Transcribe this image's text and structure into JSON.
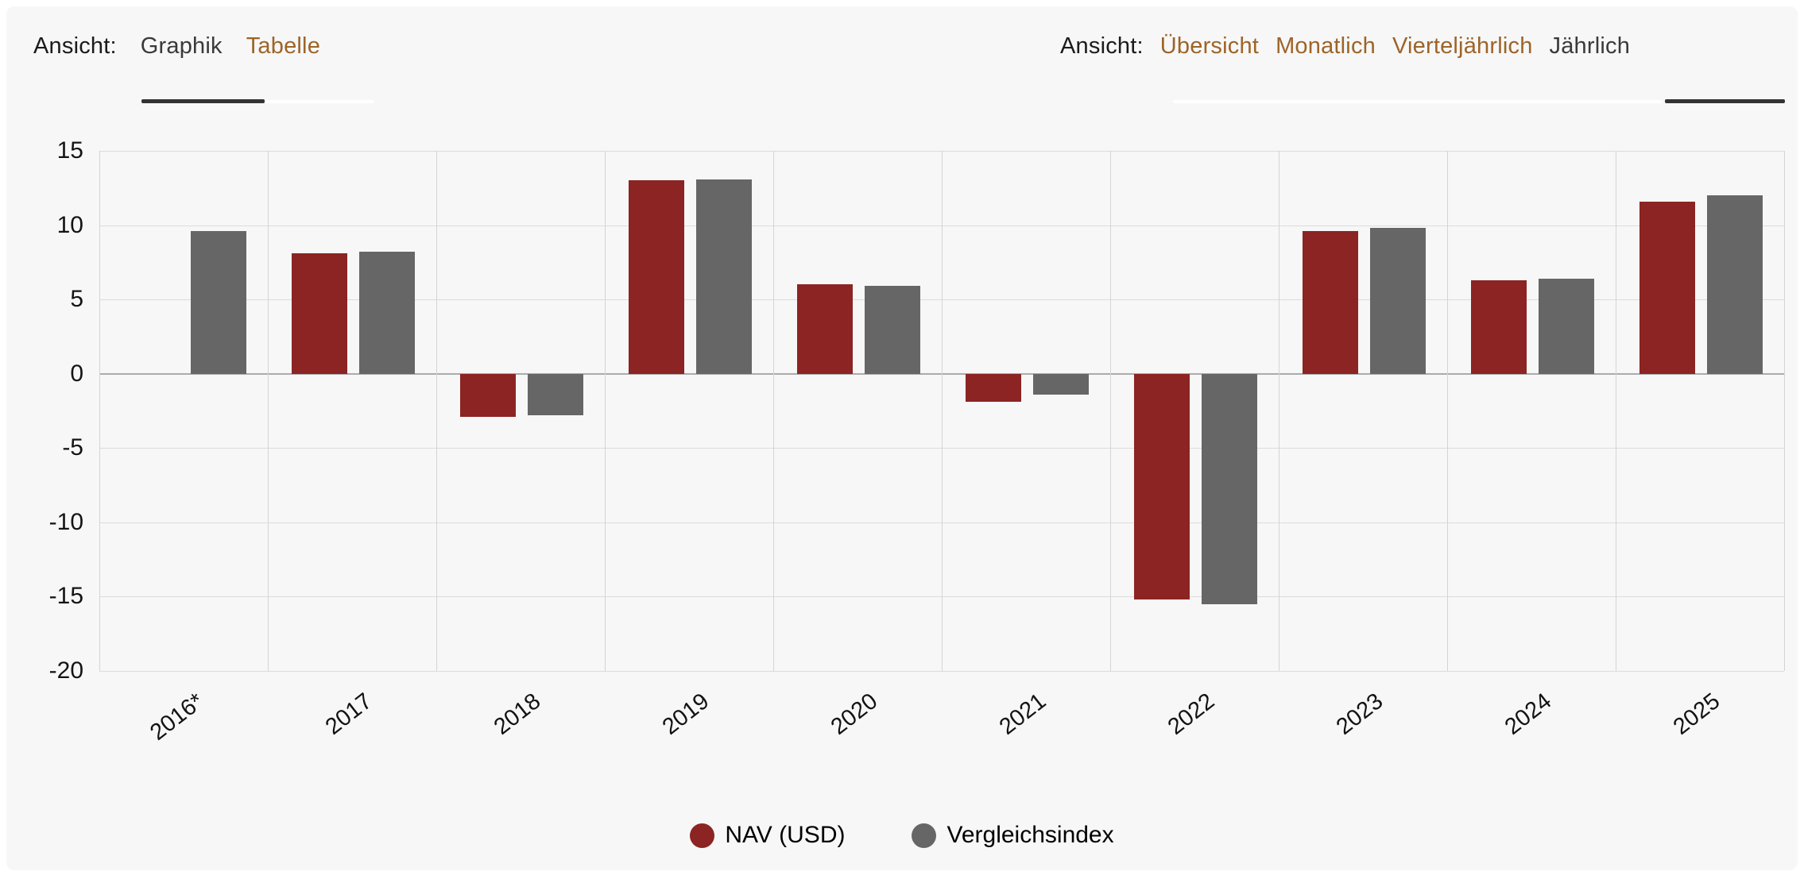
{
  "header": {
    "view_switch": {
      "label": "Ansicht:",
      "tabs": [
        {
          "label": "Graphik",
          "active": true
        },
        {
          "label": "Tabelle",
          "active": false
        }
      ]
    },
    "period_switch": {
      "label": "Ansicht:",
      "tabs": [
        {
          "label": "Übersicht",
          "active": false
        },
        {
          "label": "Monatlich",
          "active": false
        },
        {
          "label": "Vierteljährlich",
          "active": false
        },
        {
          "label": "Jährlich",
          "active": true
        }
      ]
    },
    "accent_text_color": "#9D6428",
    "active_text_color": "#3A3A3A"
  },
  "chart_data": {
    "type": "bar",
    "title": "",
    "categories": [
      "2016*",
      "2017",
      "2018",
      "2019",
      "2020",
      "2021",
      "2022",
      "2023",
      "2024",
      "2025"
    ],
    "series": [
      {
        "name": "NAV (USD)",
        "color": "#8B2423",
        "values": [
          null,
          8.1,
          -2.9,
          13.0,
          6.0,
          -1.9,
          -15.2,
          9.6,
          6.3,
          11.6
        ]
      },
      {
        "name": "Vergleichsindex",
        "color": "#666666",
        "values": [
          9.6,
          8.2,
          -2.8,
          13.1,
          5.9,
          -1.4,
          -15.5,
          9.8,
          6.4,
          12.0
        ]
      }
    ],
    "ylim": [
      -20,
      15
    ],
    "yticks": [
      15,
      10,
      5,
      0,
      -5,
      -10,
      -15,
      -20
    ],
    "grid": true,
    "legend_position": "bottom",
    "background_color": "#F7F7F7",
    "gridline_color": "#DCDCDC",
    "zero_line_color": "#ABABAB"
  }
}
